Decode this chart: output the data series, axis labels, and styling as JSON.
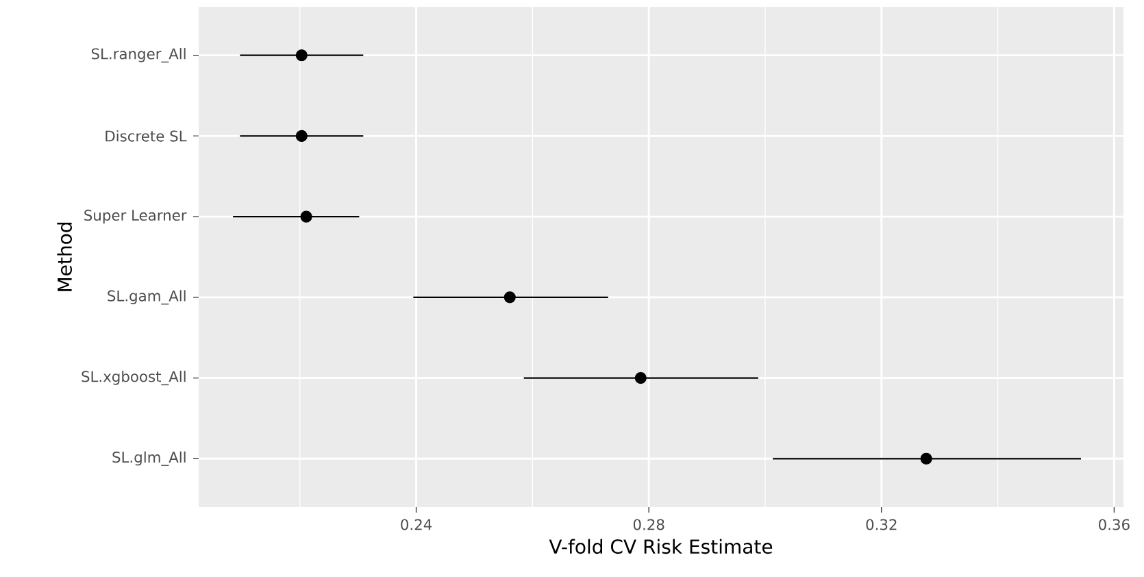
{
  "chart_data": {
    "type": "scatter",
    "orientation": "horizontal",
    "xlabel": "V-fold CV Risk Estimate",
    "ylabel": "Method",
    "categories": [
      "SL.ranger_All",
      "Discrete SL",
      "Super Learner",
      "SL.gam_All",
      "SL.xgboost_All",
      "SL.glm_All"
    ],
    "values": [
      0.2203,
      0.2203,
      0.2211,
      0.2561,
      0.2786,
      0.3277
    ],
    "errors": [
      [
        0.2097,
        0.2309
      ],
      [
        0.2097,
        0.2309
      ],
      [
        0.2085,
        0.2302
      ],
      [
        0.2395,
        0.273
      ],
      [
        0.2585,
        0.2988
      ],
      [
        0.3013,
        0.3543
      ]
    ],
    "color": "#000000",
    "xlim": [
      0.2026,
      0.3616
    ],
    "xticks": [
      0.24,
      0.28,
      0.32,
      0.36
    ],
    "grid": true
  }
}
